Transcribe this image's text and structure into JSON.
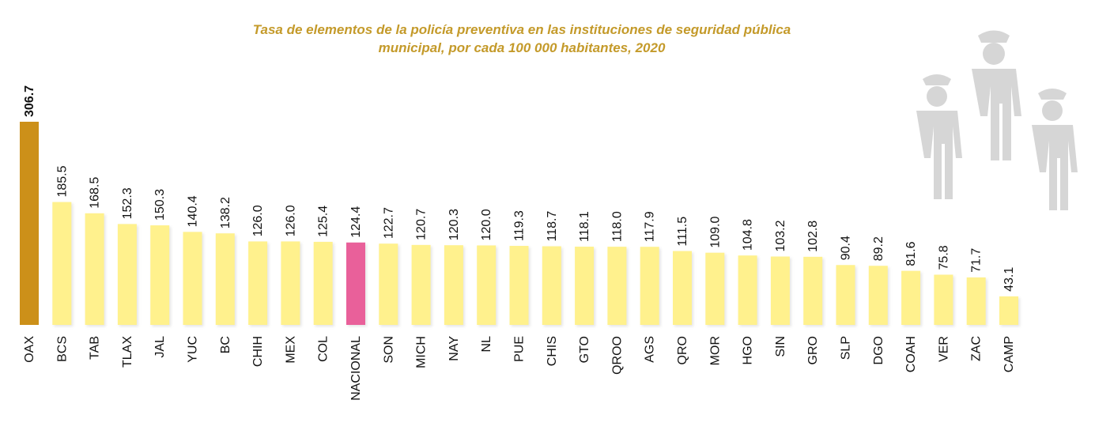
{
  "chart_data": {
    "type": "bar",
    "title_line1": "Tasa de elementos de la policía preventiva en las instituciones de seguridad pública",
    "title_line2": "municipal, por cada 100 000 habitantes, 2020",
    "categories": [
      "OAX",
      "BCS",
      "TAB",
      "TLAX",
      "JAL",
      "YUC",
      "BC",
      "CHIH",
      "MEX",
      "COL",
      "NACIONAL",
      "SON",
      "MICH",
      "NAY",
      "NL",
      "PUE",
      "CHIS",
      "GTO",
      "QROO",
      "AGS",
      "QRO",
      "MOR",
      "HGO",
      "SIN",
      "GRO",
      "SLP",
      "DGO",
      "COAH",
      "VER",
      "ZAC",
      "CAMP"
    ],
    "values": [
      306.7,
      185.5,
      168.5,
      152.3,
      150.3,
      140.4,
      138.2,
      126.0,
      126.0,
      125.4,
      124.4,
      122.7,
      120.7,
      120.3,
      120.0,
      119.3,
      118.7,
      118.1,
      118.0,
      117.9,
      111.5,
      109.0,
      104.8,
      103.2,
      102.8,
      90.4,
      89.2,
      81.6,
      75.8,
      71.7,
      43.1
    ],
    "value_labels": [
      "306.7",
      "185.5",
      "168.5",
      "152.3",
      "150.3",
      "140.4",
      "138.2",
      "126.0",
      "126.0",
      "125.4",
      "124.4",
      "122.7",
      "120.7",
      "120.3",
      "120.0",
      "119.3",
      "118.7",
      "118.1",
      "118.0",
      "117.9",
      "111.5",
      "109.0",
      "104.8",
      "103.2",
      "102.8",
      "90.4",
      "89.2",
      "81.6",
      "75.8",
      "71.7",
      "43.1"
    ],
    "highlight": {
      "OAX": "#CC9019",
      "NACIONAL": "#E9619A"
    },
    "bar_color": "#FFF18D",
    "ylim": [
      0,
      306.7
    ],
    "grid": false,
    "legend": "none"
  },
  "decor": {
    "icon": "police-officers-icon"
  }
}
